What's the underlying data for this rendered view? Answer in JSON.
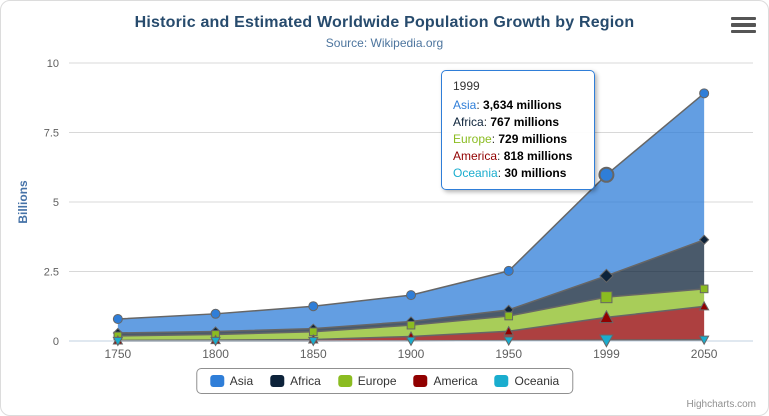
{
  "credits": "Highcharts.com",
  "colors": {
    "grid": "#d8d8d8",
    "axis_line": "#c0d0e0",
    "marker_stroke": "#666666",
    "edge_line": "#666666",
    "title": "#274b6d",
    "subtitle": "#4d759e",
    "axis_label": "#606060",
    "yaxis_title": "#4572a7",
    "tooltip_border": "#2f7ed8",
    "legend_border": "#909090",
    "credits": "#909090",
    "export_icon": "#555555"
  },
  "chart_data": {
    "type": "area",
    "stacking": "normal",
    "title": "Historic and Estimated Worldwide Population Growth by Region",
    "subtitle": "Source: Wikipedia.org",
    "categories": [
      "1750",
      "1800",
      "1850",
      "1900",
      "1950",
      "1999",
      "2050"
    ],
    "xlabel": "",
    "ylabel": "Billions",
    "ylim": [
      0,
      10
    ],
    "yticks": [
      0,
      2.5,
      5,
      7.5,
      10
    ],
    "unit": "millions",
    "grid": "horizontal",
    "legend_position": "bottom",
    "fill_opacity": 0.75,
    "stack_order_bottom_to_top": [
      "Oceania",
      "America",
      "Europe",
      "Africa",
      "Asia"
    ],
    "series": [
      {
        "name": "Asia",
        "color": "#2f7ed8",
        "marker": "circle",
        "values": [
          502,
          635,
          809,
          947,
          1402,
          3634,
          5268
        ]
      },
      {
        "name": "Africa",
        "color": "#0d233a",
        "marker": "diamond",
        "values": [
          106,
          107,
          111,
          133,
          221,
          767,
          1766
        ]
      },
      {
        "name": "Europe",
        "color": "#8bbc21",
        "marker": "square",
        "values": [
          163,
          203,
          276,
          408,
          547,
          729,
          628
        ]
      },
      {
        "name": "America",
        "color": "#910000",
        "marker": "triangle",
        "values": [
          18,
          31,
          54,
          156,
          339,
          818,
          1201
        ]
      },
      {
        "name": "Oceania",
        "color": "#1aadce",
        "marker": "triangle-down",
        "values": [
          2,
          2,
          2,
          6,
          13,
          30,
          46
        ]
      }
    ],
    "hover": {
      "category": "1999",
      "category_index": 5
    }
  },
  "tooltip": {
    "header": "1999",
    "rows": [
      {
        "name": "Asia",
        "color": "#2f7ed8",
        "value": "3,634 millions"
      },
      {
        "name": "Africa",
        "color": "#0d233a",
        "value": "767 millions"
      },
      {
        "name": "Europe",
        "color": "#8bbc21",
        "value": "729 millions"
      },
      {
        "name": "America",
        "color": "#910000",
        "value": "818 millions"
      },
      {
        "name": "Oceania",
        "color": "#1aadce",
        "value": "30 millions"
      }
    ]
  },
  "legend": {
    "items": [
      "Asia",
      "Africa",
      "Europe",
      "America",
      "Oceania"
    ]
  }
}
